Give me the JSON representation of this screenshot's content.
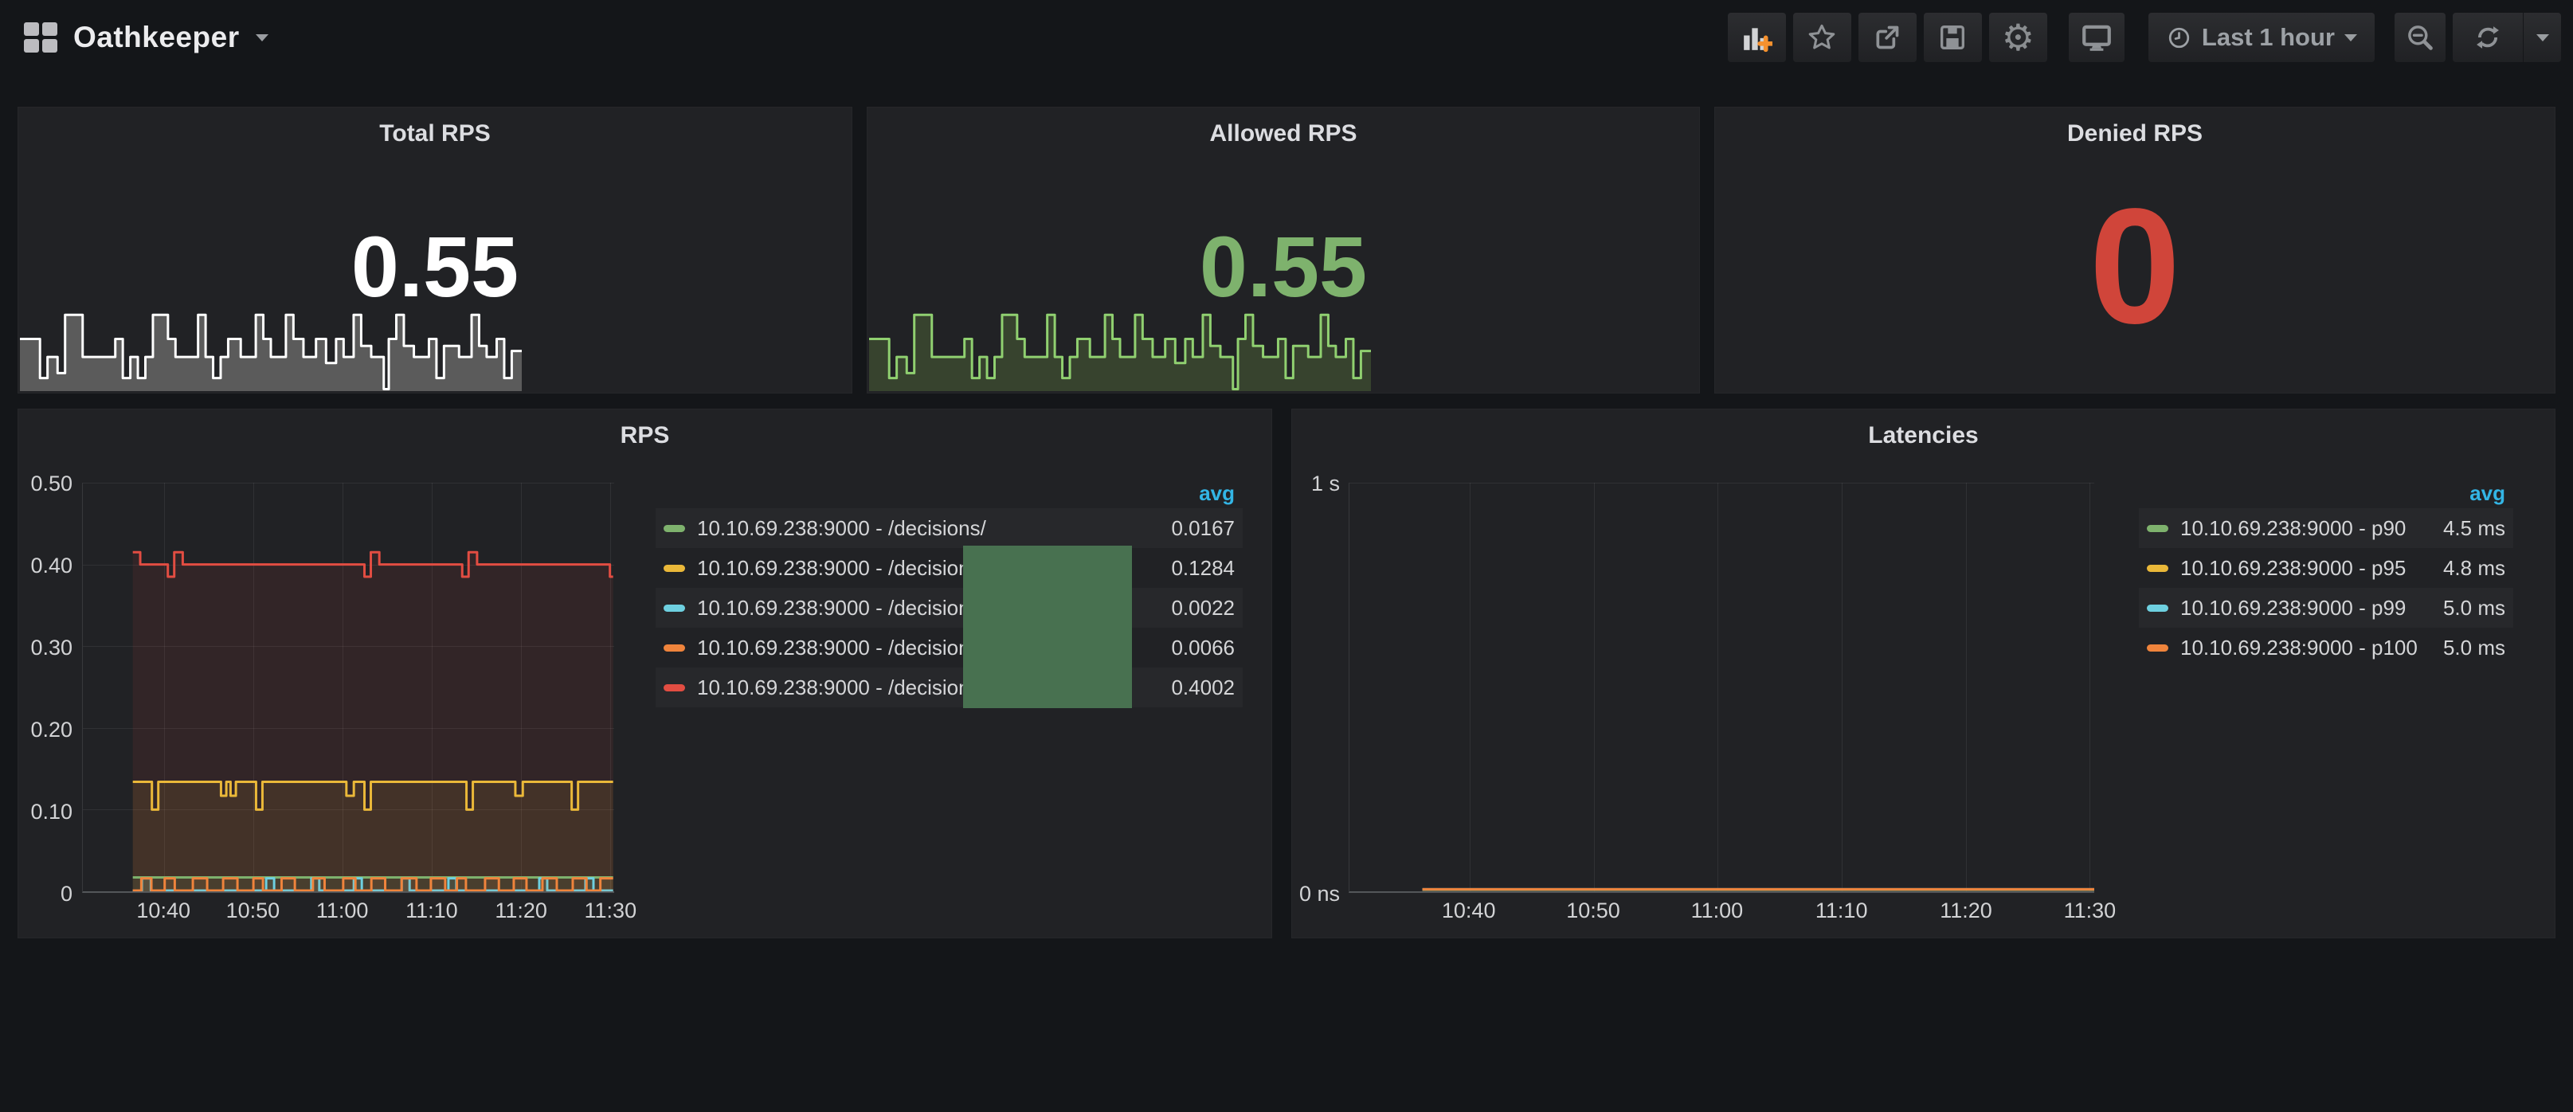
{
  "header": {
    "title": "Oathkeeper",
    "time_range": "Last 1 hour",
    "buttons": [
      {
        "name": "add-panel",
        "icon": "bar-chart-plus-icon"
      },
      {
        "name": "star",
        "icon": "star-icon"
      },
      {
        "name": "share",
        "icon": "share-icon"
      },
      {
        "name": "save",
        "icon": "save-icon"
      },
      {
        "name": "settings",
        "icon": "gear-icon"
      },
      {
        "name": "cycle-view",
        "icon": "monitor-icon"
      },
      {
        "name": "time-picker",
        "icon": "clock-icon",
        "label": "Last 1 hour"
      },
      {
        "name": "zoom-out",
        "icon": "zoom-out-icon"
      },
      {
        "name": "refresh",
        "icon": "refresh-icon"
      },
      {
        "name": "refresh-interval",
        "icon": "caret-down-icon"
      }
    ]
  },
  "palette": {
    "green": "#7eb26d",
    "yellow": "#eab839",
    "blue": "#6ed0e0",
    "orange": "#ef843c",
    "red": "#e24d42",
    "legend_header_blue": "#33b5e5",
    "stat_white": "#ffffff",
    "stat_green": "#7eb26d",
    "stat_red": "#d0453a",
    "overlay_green": "#487150"
  },
  "panels": {
    "total": {
      "title": "Total RPS",
      "value": "0.55"
    },
    "allowed": {
      "title": "Allowed RPS",
      "value": "0.55"
    },
    "denied": {
      "title": "Denied RPS",
      "value": "0"
    }
  },
  "artifacts": {
    "green_box": {
      "color": "#487150"
    }
  },
  "chart_data": [
    {
      "id": "total-rps-spark",
      "type": "area",
      "title": "Total RPS",
      "stat_value": "0.55",
      "ylim": [
        0,
        1
      ],
      "stroke": "#ffffff",
      "fill": "#5b5b5b",
      "points": [
        [
          0,
          0.52
        ],
        [
          4,
          0.52
        ],
        [
          4,
          0.13
        ],
        [
          5.5,
          0.13
        ],
        [
          5.5,
          0.34
        ],
        [
          7.5,
          0.34
        ],
        [
          7.5,
          0.18
        ],
        [
          9,
          0.18
        ],
        [
          9,
          0.76
        ],
        [
          12.5,
          0.76
        ],
        [
          12.5,
          0.34
        ],
        [
          19,
          0.34
        ],
        [
          19,
          0.52
        ],
        [
          20.5,
          0.52
        ],
        [
          20.5,
          0.13
        ],
        [
          22,
          0.13
        ],
        [
          22,
          0.34
        ],
        [
          23.5,
          0.34
        ],
        [
          23.5,
          0.13
        ],
        [
          25,
          0.13
        ],
        [
          25,
          0.34
        ],
        [
          26.5,
          0.34
        ],
        [
          26.5,
          0.76
        ],
        [
          29.5,
          0.76
        ],
        [
          29.5,
          0.52
        ],
        [
          31,
          0.52
        ],
        [
          31,
          0.34
        ],
        [
          35.5,
          0.34
        ],
        [
          35.5,
          0.76
        ],
        [
          37,
          0.76
        ],
        [
          37,
          0.34
        ],
        [
          38.5,
          0.34
        ],
        [
          38.5,
          0.13
        ],
        [
          40,
          0.13
        ],
        [
          40,
          0.34
        ],
        [
          41.5,
          0.34
        ],
        [
          41.5,
          0.52
        ],
        [
          44,
          0.52
        ],
        [
          44,
          0.34
        ],
        [
          47,
          0.34
        ],
        [
          47,
          0.76
        ],
        [
          48.5,
          0.76
        ],
        [
          48.5,
          0.52
        ],
        [
          50,
          0.52
        ],
        [
          50,
          0.34
        ],
        [
          53,
          0.34
        ],
        [
          53,
          0.76
        ],
        [
          54.5,
          0.76
        ],
        [
          54.5,
          0.52
        ],
        [
          56.5,
          0.52
        ],
        [
          56.5,
          0.34
        ],
        [
          59,
          0.34
        ],
        [
          59,
          0.52
        ],
        [
          61,
          0.52
        ],
        [
          61,
          0.28
        ],
        [
          63,
          0.28
        ],
        [
          63,
          0.52
        ],
        [
          64.5,
          0.52
        ],
        [
          64.5,
          0.34
        ],
        [
          66.5,
          0.34
        ],
        [
          66.5,
          0.76
        ],
        [
          68,
          0.76
        ],
        [
          68,
          0.45
        ],
        [
          70,
          0.45
        ],
        [
          70,
          0.34
        ],
        [
          72.5,
          0.34
        ],
        [
          72.5,
          0.02
        ],
        [
          73.5,
          0.02
        ],
        [
          73.5,
          0.52
        ],
        [
          75,
          0.52
        ],
        [
          75,
          0.76
        ],
        [
          76.5,
          0.76
        ],
        [
          76.5,
          0.45
        ],
        [
          78.5,
          0.45
        ],
        [
          78.5,
          0.34
        ],
        [
          81.5,
          0.34
        ],
        [
          81.5,
          0.52
        ],
        [
          83,
          0.52
        ],
        [
          83,
          0.13
        ],
        [
          84.5,
          0.13
        ],
        [
          84.5,
          0.45
        ],
        [
          87.5,
          0.45
        ],
        [
          87.5,
          0.34
        ],
        [
          90,
          0.34
        ],
        [
          90,
          0.76
        ],
        [
          91.5,
          0.76
        ],
        [
          91.5,
          0.45
        ],
        [
          93,
          0.45
        ],
        [
          93,
          0.34
        ],
        [
          95,
          0.34
        ],
        [
          95,
          0.52
        ],
        [
          96.5,
          0.52
        ],
        [
          96.5,
          0.13
        ],
        [
          98,
          0.13
        ],
        [
          98,
          0.4
        ],
        [
          100,
          0.4
        ]
      ]
    },
    {
      "id": "allowed-rps-spark",
      "type": "area",
      "title": "Allowed RPS",
      "stat_value": "0.55",
      "ylim": [
        0,
        1
      ],
      "stroke": "#90d070",
      "fill": "#37432e",
      "points": "same_as_total"
    },
    {
      "id": "rps",
      "type": "line",
      "title": "RPS",
      "ylim": [
        0,
        0.5
      ],
      "grid": true,
      "legend_position": "right-table",
      "legend_header": "avg",
      "yticks": [
        {
          "v": 0.5,
          "label": "0.50"
        },
        {
          "v": 0.4,
          "label": "0.40"
        },
        {
          "v": 0.3,
          "label": "0.30"
        },
        {
          "v": 0.2,
          "label": "0.20"
        },
        {
          "v": 0.1,
          "label": "0.10"
        },
        {
          "v": 0,
          "label": "0"
        }
      ],
      "xticks": [
        {
          "frac": 15.3,
          "label": "10:40"
        },
        {
          "frac": 32.1,
          "label": "10:50"
        },
        {
          "frac": 48.9,
          "label": "11:00"
        },
        {
          "frac": 65.7,
          "label": "11:10"
        },
        {
          "frac": 82.5,
          "label": "11:20"
        },
        {
          "frac": 99.3,
          "label": "11:30"
        }
      ],
      "series": [
        {
          "name": "10.10.69.238:9000 - /decisions/",
          "color": "red",
          "avg": 0.4002,
          "segments": [
            [
              9.4,
              10.8,
              0.415
            ],
            [
              10.8,
              16.0,
              0.4
            ],
            [
              16.0,
              17.2,
              0.385
            ],
            [
              17.2,
              18.8,
              0.415
            ],
            [
              18.8,
              53.0,
              0.4
            ],
            [
              53.0,
              54.2,
              0.385
            ],
            [
              54.2,
              55.8,
              0.415
            ],
            [
              55.8,
              71.4,
              0.4
            ],
            [
              71.4,
              72.6,
              0.385
            ],
            [
              72.6,
              74.2,
              0.415
            ],
            [
              74.2,
              99.2,
              0.4
            ],
            [
              99.2,
              99.8,
              0.385
            ]
          ]
        },
        {
          "name": "10.10.69.238:9000 - /decisions/",
          "color": "yellow",
          "avg": 0.1284,
          "segments": [
            [
              9.4,
              13.0,
              0.134
            ],
            [
              13.0,
              14.2,
              0.1
            ],
            [
              14.2,
              26.0,
              0.134
            ],
            [
              26.0,
              27.0,
              0.117
            ],
            [
              27.0,
              27.8,
              0.134
            ],
            [
              27.8,
              28.8,
              0.117
            ],
            [
              28.8,
              32.6,
              0.134
            ],
            [
              32.6,
              33.8,
              0.1
            ],
            [
              33.8,
              49.6,
              0.134
            ],
            [
              49.6,
              51.0,
              0.117
            ],
            [
              51.0,
              53.0,
              0.134
            ],
            [
              53.0,
              54.2,
              0.1
            ],
            [
              54.2,
              72.2,
              0.134
            ],
            [
              72.2,
              73.4,
              0.1
            ],
            [
              73.4,
              81.4,
              0.134
            ],
            [
              81.4,
              82.8,
              0.117
            ],
            [
              82.8,
              92.0,
              0.134
            ],
            [
              92.0,
              93.2,
              0.1
            ],
            [
              93.2,
              99.8,
              0.134
            ]
          ]
        },
        {
          "name": "10.10.69.238:9000 - /decisions/",
          "color": "green",
          "avg": 0.0167,
          "segments": [
            [
              9.4,
              99.8,
              0.017
            ]
          ]
        },
        {
          "name": "10.10.69.238:9000 - /decisions/",
          "color": "blue",
          "avg": 0.0022,
          "segments": [
            [
              9.4,
              11.1,
              0.001
            ],
            [
              11.1,
              12.8,
              0.016
            ],
            [
              12.8,
              34.5,
              0.001
            ],
            [
              34.5,
              36.0,
              0.016
            ],
            [
              36.0,
              43.0,
              0.001
            ],
            [
              43.0,
              44.5,
              0.016
            ],
            [
              44.5,
              51.0,
              0.001
            ],
            [
              51.0,
              52.5,
              0.016
            ],
            [
              52.5,
              60.0,
              0.001
            ],
            [
              60.0,
              61.5,
              0.016
            ],
            [
              61.5,
              68.8,
              0.001
            ],
            [
              68.8,
              70.3,
              0.016
            ],
            [
              70.3,
              85.9,
              0.001
            ],
            [
              85.9,
              87.4,
              0.016
            ],
            [
              87.4,
              94.6,
              0.001
            ],
            [
              94.6,
              96.1,
              0.016
            ],
            [
              96.1,
              99.8,
              0.001
            ]
          ]
        },
        {
          "name": "10.10.69.238:9000 - /decisions/",
          "color": "orange",
          "avg": 0.0066,
          "segments": [
            [
              9.4,
              11.0,
              0.001
            ],
            [
              11.0,
              12.9,
              0.016
            ],
            [
              12.9,
              15.4,
              0.001
            ],
            [
              15.4,
              17.3,
              0.016
            ],
            [
              17.3,
              20.7,
              0.001
            ],
            [
              20.7,
              23.4,
              0.016
            ],
            [
              23.4,
              26.4,
              0.001
            ],
            [
              26.4,
              29.1,
              0.016
            ],
            [
              29.1,
              32.1,
              0.001
            ],
            [
              32.1,
              33.9,
              0.016
            ],
            [
              33.9,
              37.4,
              0.001
            ],
            [
              37.4,
              39.9,
              0.016
            ],
            [
              39.9,
              43.3,
              0.001
            ],
            [
              43.3,
              45.5,
              0.016
            ],
            [
              45.5,
              49.0,
              0.001
            ],
            [
              49.0,
              51.3,
              0.016
            ],
            [
              51.3,
              54.3,
              0.001
            ],
            [
              54.3,
              56.9,
              0.016
            ],
            [
              56.9,
              60.0,
              0.001
            ],
            [
              60.0,
              62.8,
              0.016
            ],
            [
              62.8,
              65.5,
              0.001
            ],
            [
              65.5,
              68.2,
              0.016
            ],
            [
              68.2,
              70.4,
              0.001
            ],
            [
              70.4,
              72.1,
              0.016
            ],
            [
              72.1,
              75.7,
              0.001
            ],
            [
              75.7,
              78.3,
              0.016
            ],
            [
              78.3,
              81.1,
              0.001
            ],
            [
              81.1,
              83.5,
              0.016
            ],
            [
              83.5,
              86.5,
              0.001
            ],
            [
              86.5,
              89.2,
              0.016
            ],
            [
              89.2,
              92.2,
              0.001
            ],
            [
              92.2,
              94.8,
              0.016
            ],
            [
              94.8,
              97.4,
              0.001
            ],
            [
              97.4,
              99.8,
              0.016
            ]
          ]
        }
      ],
      "legend_rows": [
        {
          "color": "green",
          "label": "10.10.69.238:9000 - /decisions/",
          "value": "0.0167"
        },
        {
          "color": "yellow",
          "label": "10.10.69.238:9000 - /decisions/",
          "value": "0.1284"
        },
        {
          "color": "blue",
          "label": "10.10.69.238:9000 - /decisions/",
          "value": "0.0022"
        },
        {
          "color": "orange",
          "label": "10.10.69.238:9000 - /decisions/",
          "value": "0.0066"
        },
        {
          "color": "red",
          "label": "10.10.69.238:9000 - /decisions/",
          "value": "0.4002"
        }
      ]
    },
    {
      "id": "latencies",
      "type": "line",
      "title": "Latencies",
      "ylim": [
        0,
        1
      ],
      "grid": true,
      "legend_position": "right-table",
      "legend_header": "avg",
      "yticks": [
        {
          "v": 1,
          "label": "1 s"
        },
        {
          "v": 0,
          "label": "0 ns"
        }
      ],
      "xticks": [
        {
          "frac": 16.1,
          "label": "10:40"
        },
        {
          "frac": 32.8,
          "label": "10:50"
        },
        {
          "frac": 49.4,
          "label": "11:00"
        },
        {
          "frac": 66.1,
          "label": "11:10"
        },
        {
          "frac": 82.8,
          "label": "11:20"
        },
        {
          "frac": 99.4,
          "label": "11:30"
        }
      ],
      "series": [
        {
          "name": "10.10.69.238:9000 - p90",
          "color": "green",
          "avg_label": "4.5 ms",
          "segments": [
            [
              9.8,
              100,
              0.0045
            ]
          ]
        },
        {
          "name": "10.10.69.238:9000 - p95",
          "color": "yellow",
          "avg_label": "4.8 ms",
          "segments": [
            [
              9.8,
              100,
              0.0048
            ]
          ]
        },
        {
          "name": "10.10.69.238:9000 - p99",
          "color": "blue",
          "avg_label": "5.0 ms",
          "segments": [
            [
              9.8,
              100,
              0.005
            ]
          ]
        },
        {
          "name": "10.10.69.238:9000 - p100",
          "color": "orange",
          "avg_label": "5.0 ms",
          "segments": [
            [
              9.8,
              100,
              0.005
            ]
          ]
        }
      ],
      "legend_rows": [
        {
          "color": "green",
          "label": "10.10.69.238:9000 - p90",
          "value": "4.5 ms"
        },
        {
          "color": "yellow",
          "label": "10.10.69.238:9000 - p95",
          "value": "4.8 ms"
        },
        {
          "color": "blue",
          "label": "10.10.69.238:9000 - p99",
          "value": "5.0 ms"
        },
        {
          "color": "orange",
          "label": "10.10.69.238:9000 - p100",
          "value": "5.0 ms"
        }
      ]
    }
  ]
}
